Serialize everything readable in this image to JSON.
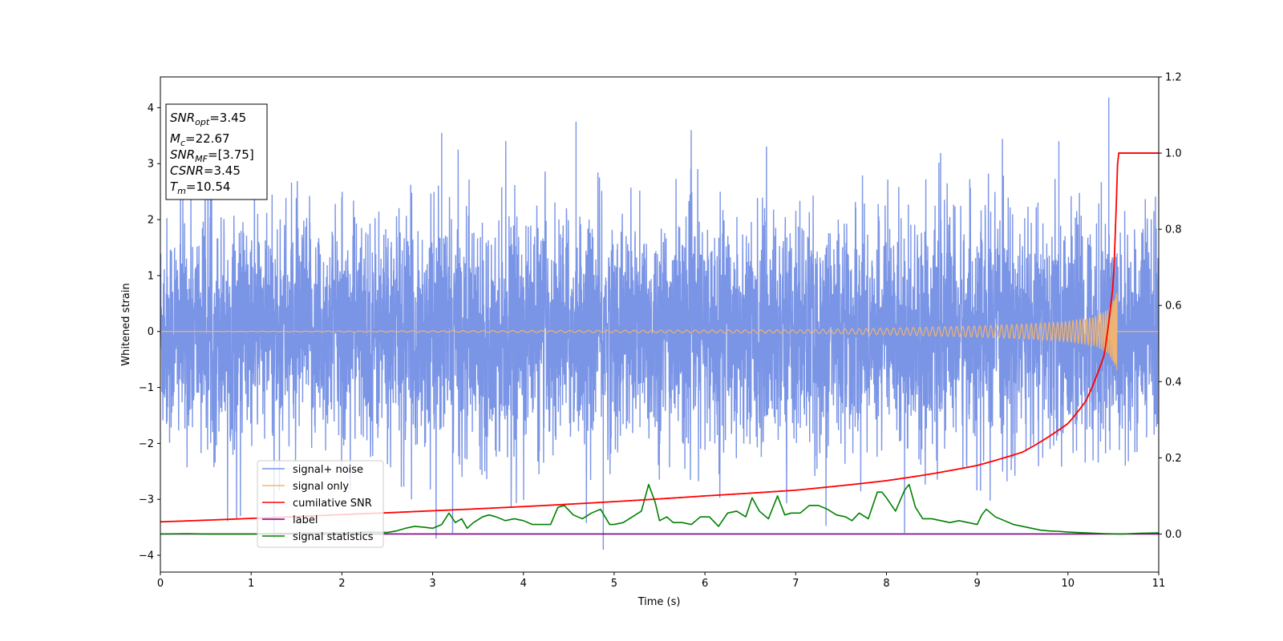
{
  "chart_data": {
    "type": "line",
    "xlabel": "Time (s)",
    "ylabel": "Whitened strain",
    "xlim": [
      0,
      11
    ],
    "ylim": [
      -4.3,
      4.55
    ],
    "y2lim": [
      -0.1,
      1.2
    ],
    "x_ticks": [
      "0",
      "1",
      "2",
      "3",
      "4",
      "5",
      "6",
      "7",
      "8",
      "9",
      "10",
      "11"
    ],
    "y_ticks": [
      "−4",
      "−3",
      "−2",
      "−1",
      "0",
      "1",
      "2",
      "3",
      "4"
    ],
    "y2_ticks": [
      "0.0",
      "0.2",
      "0.4",
      "0.6",
      "0.8",
      "1.0",
      "1.2"
    ],
    "grid": false,
    "legend_position": "lower-left",
    "annotation": {
      "snr_opt": "=3.45",
      "mc": "=22.67",
      "snr_mf": "=[3.75]",
      "csnr": "=3.45",
      "tm": "=10.54"
    },
    "series": [
      {
        "name": "signal+ noise",
        "axis": "left",
        "color": "#7a94e6",
        "description": "dense whitened noise, approx uniform amplitude ±2, peaks to ~4.2 near t=10.45",
        "amplitude": 1.0,
        "notable_peaks": [
          [
            3.1,
            3.55
          ],
          [
            4.58,
            3.75
          ],
          [
            9.9,
            3.4
          ],
          [
            10.45,
            4.18
          ],
          [
            4.88,
            -3.9
          ],
          [
            8.2,
            -3.6
          ],
          [
            3.22,
            -3.6
          ]
        ]
      },
      {
        "name": "signal only",
        "axis": "left",
        "color": "#f5b56a",
        "description": "chirp waveform, merger at t=10.54",
        "merger_time": 10.54,
        "peak_amplitude": 0.7,
        "x": [
          0,
          7,
          8,
          9,
          9.5,
          10,
          10.3,
          10.45,
          10.54,
          10.56
        ],
        "envelope": [
          0.0,
          0.03,
          0.06,
          0.1,
          0.13,
          0.18,
          0.26,
          0.4,
          0.7,
          0.0
        ]
      },
      {
        "name": "cumilative SNR",
        "axis": "right",
        "color": "#ff0000",
        "x": [
          0,
          1,
          2,
          3,
          4,
          5,
          6,
          7,
          8,
          8.5,
          9,
          9.5,
          10,
          10.2,
          10.4,
          10.5,
          10.55,
          11
        ],
        "y": [
          0.032,
          0.041,
          0.051,
          0.061,
          0.072,
          0.085,
          0.1,
          0.115,
          0.14,
          0.158,
          0.18,
          0.215,
          0.29,
          0.35,
          0.47,
          0.66,
          1.0,
          1.0
        ]
      },
      {
        "name": "label",
        "axis": "right",
        "color": "#800080",
        "x": [
          0,
          11
        ],
        "y": [
          0.0,
          0.0
        ]
      },
      {
        "name": "signal statistics",
        "axis": "right",
        "color": "#008000",
        "x": [
          0,
          0.3,
          0.5,
          1.0,
          1.5,
          2.0,
          2.3,
          2.5,
          2.6,
          2.7,
          2.8,
          2.9,
          3.0,
          3.1,
          3.18,
          3.25,
          3.32,
          3.38,
          3.45,
          3.55,
          3.62,
          3.7,
          3.8,
          3.9,
          4.0,
          4.1,
          4.2,
          4.3,
          4.38,
          4.45,
          4.55,
          4.65,
          4.75,
          4.85,
          4.9,
          4.95,
          5.0,
          5.1,
          5.2,
          5.3,
          5.38,
          5.45,
          5.5,
          5.58,
          5.65,
          5.75,
          5.85,
          5.95,
          6.05,
          6.15,
          6.25,
          6.35,
          6.45,
          6.52,
          6.6,
          6.7,
          6.8,
          6.88,
          6.95,
          7.05,
          7.15,
          7.25,
          7.35,
          7.45,
          7.55,
          7.62,
          7.7,
          7.8,
          7.9,
          7.95,
          8.0,
          8.1,
          8.2,
          8.25,
          8.32,
          8.4,
          8.5,
          8.6,
          8.7,
          8.8,
          8.9,
          9.0,
          9.05,
          9.1,
          9.2,
          9.3,
          9.4,
          9.5,
          9.6,
          9.7,
          9.8,
          9.9,
          10.0,
          10.2,
          10.4,
          10.6,
          10.8,
          11.0
        ],
        "y": [
          0.0,
          0.001,
          0.0,
          0.0,
          0.002,
          0.003,
          0.005,
          0.004,
          0.008,
          0.015,
          0.02,
          0.018,
          0.015,
          0.025,
          0.055,
          0.03,
          0.04,
          0.015,
          0.03,
          0.045,
          0.05,
          0.045,
          0.035,
          0.04,
          0.035,
          0.025,
          0.025,
          0.025,
          0.07,
          0.075,
          0.05,
          0.04,
          0.055,
          0.065,
          0.045,
          0.025,
          0.025,
          0.03,
          0.045,
          0.06,
          0.13,
          0.085,
          0.035,
          0.045,
          0.03,
          0.03,
          0.025,
          0.045,
          0.045,
          0.02,
          0.055,
          0.06,
          0.045,
          0.095,
          0.06,
          0.04,
          0.1,
          0.05,
          0.055,
          0.055,
          0.075,
          0.075,
          0.065,
          0.05,
          0.045,
          0.035,
          0.055,
          0.04,
          0.11,
          0.11,
          0.095,
          0.06,
          0.115,
          0.13,
          0.07,
          0.04,
          0.04,
          0.035,
          0.03,
          0.035,
          0.03,
          0.025,
          0.05,
          0.065,
          0.045,
          0.035,
          0.025,
          0.02,
          0.015,
          0.01,
          0.008,
          0.007,
          0.005,
          0.003,
          0.001,
          0.0,
          0.002,
          0.003
        ]
      }
    ]
  }
}
